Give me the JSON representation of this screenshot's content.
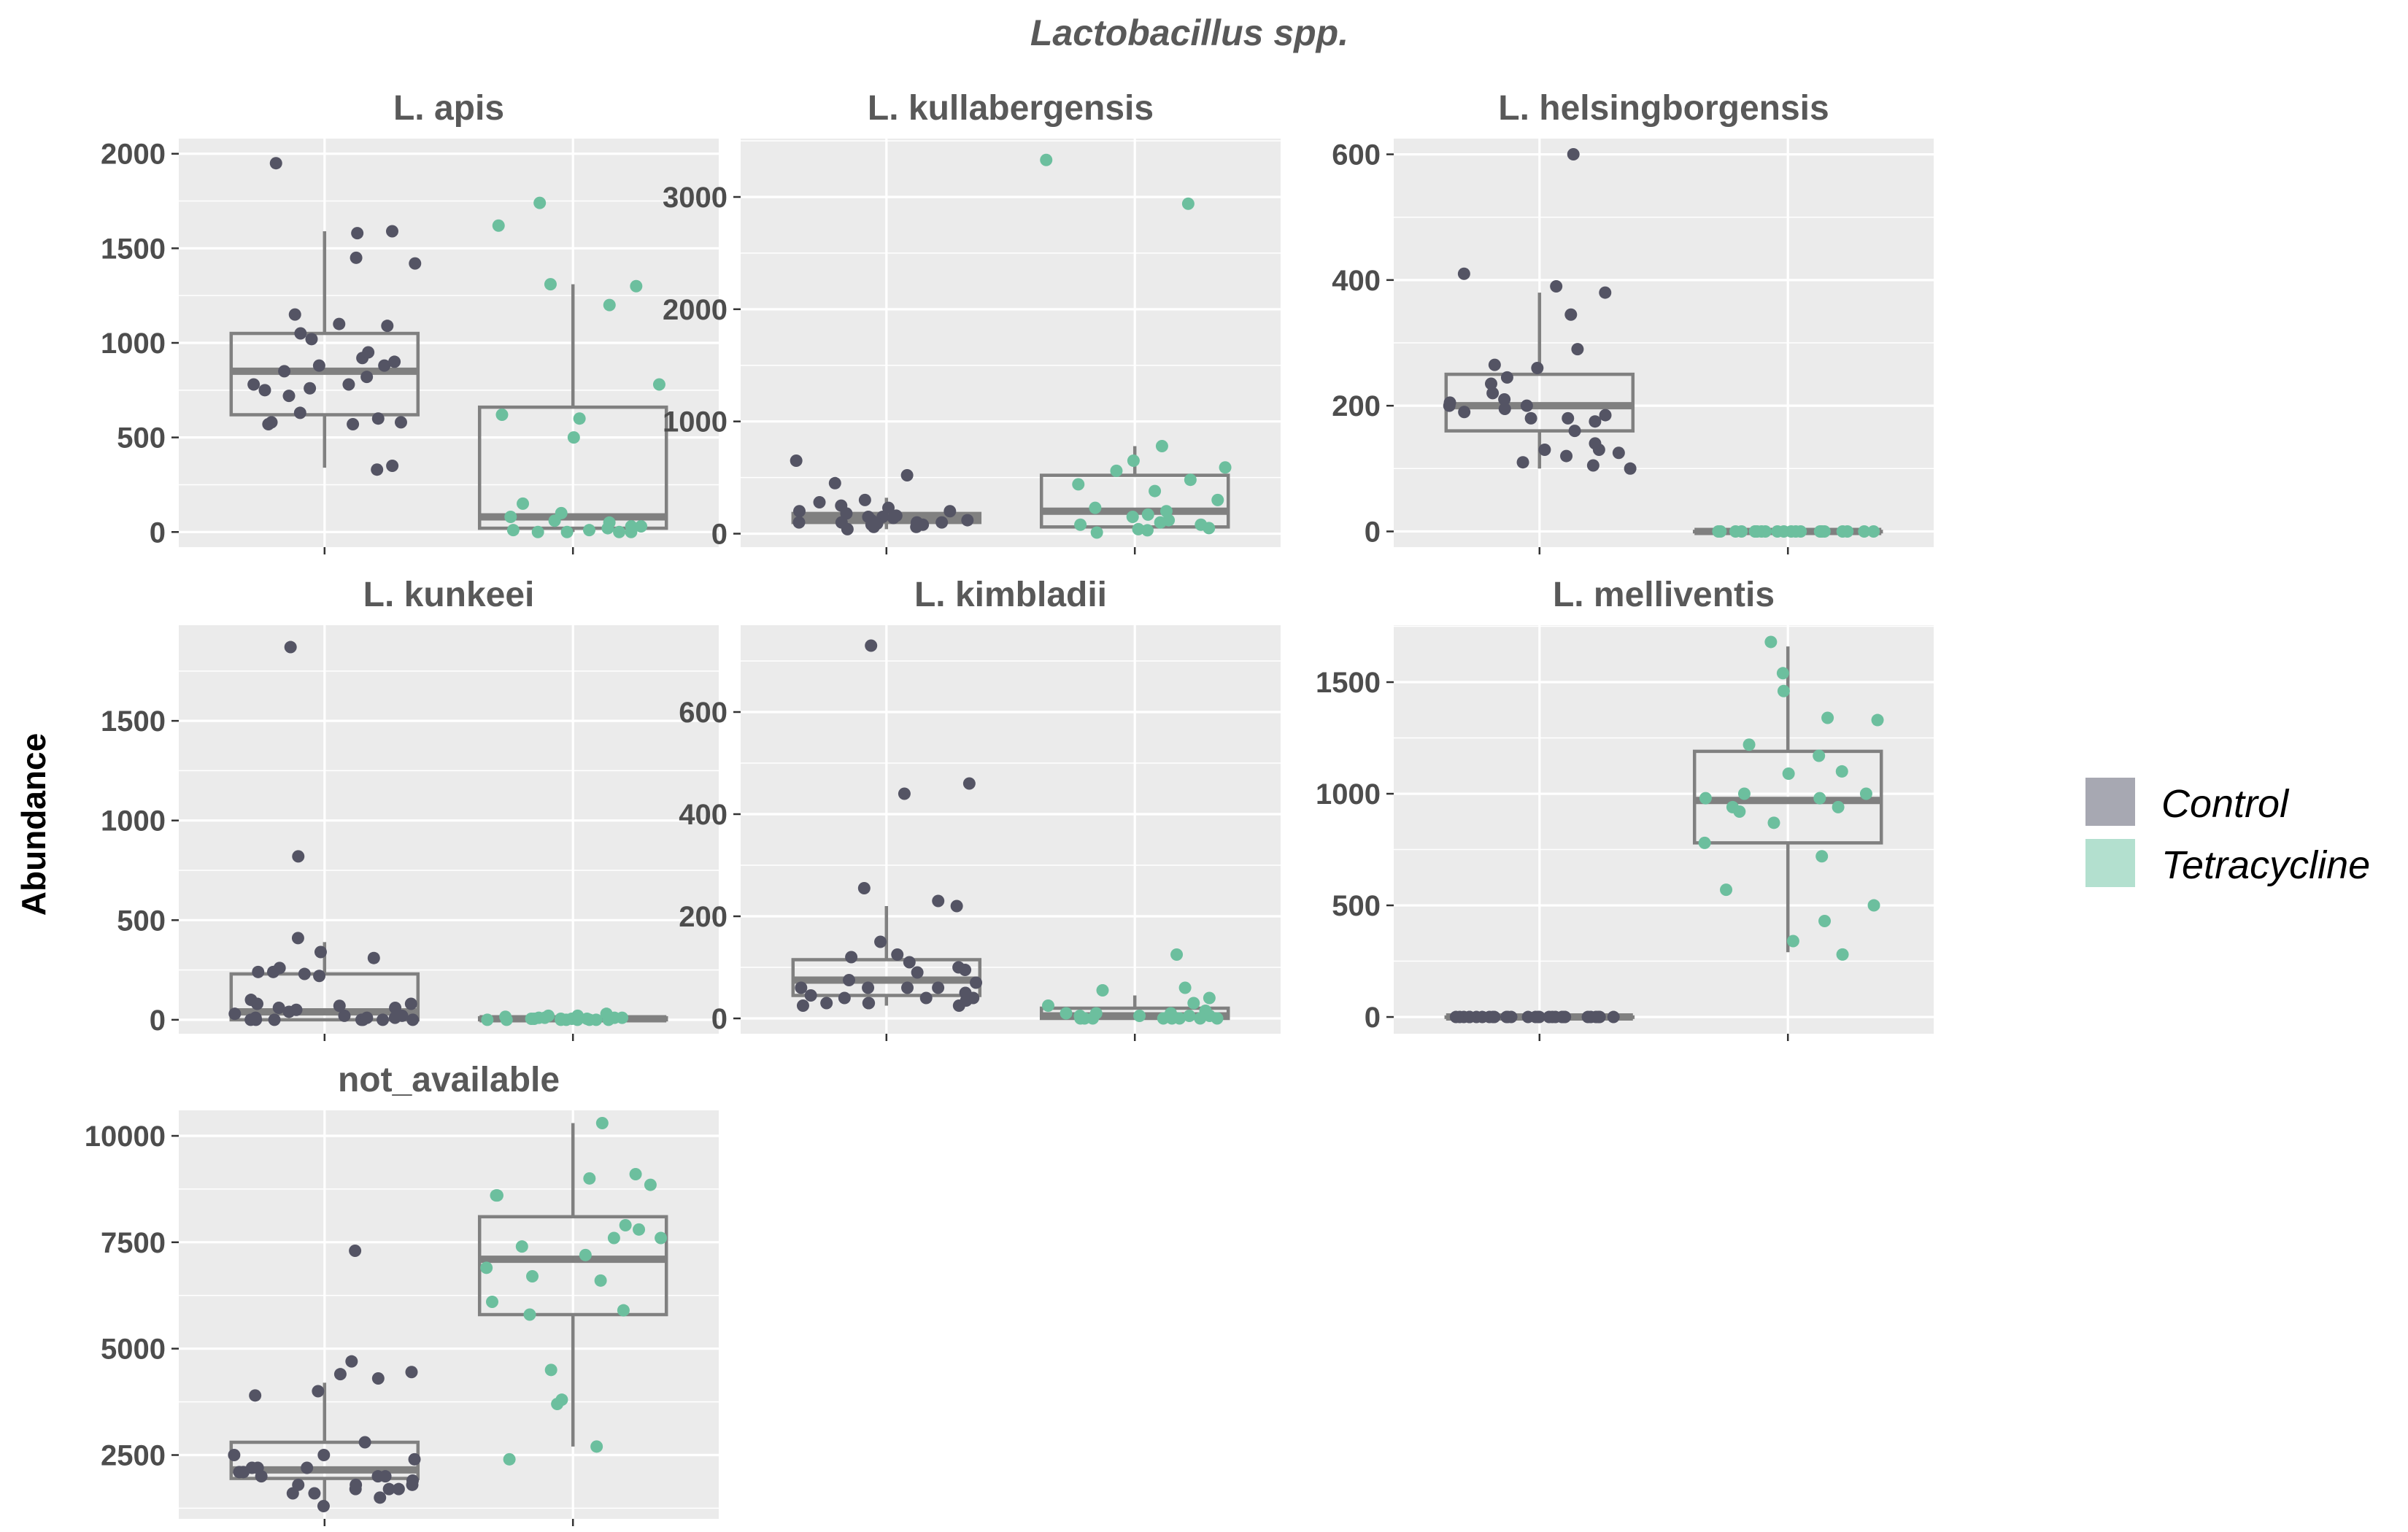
{
  "chart_data": {
    "type": "boxplot",
    "title": "Lactobacillus spp.",
    "ylabel": "Abundance",
    "xlabel": "",
    "grid": true,
    "legend_placement": "right",
    "colors": {
      "Control": "#545464",
      "Tetracycline": "#6cbf9e",
      "box": "#808080",
      "panel_bg": "#ebebeb",
      "grid": "#ffffff"
    },
    "legend": [
      {
        "name": "Control",
        "swatch": "#a7a8b2"
      },
      {
        "name": "Tetracycline",
        "swatch": "#b3e0cf"
      }
    ],
    "panels": [
      {
        "title": "L. apis",
        "ylim": [
          -80,
          2080
        ],
        "yticks": [
          0,
          500,
          1000,
          1500,
          2000
        ],
        "groups": [
          {
            "name": "Control",
            "box": {
              "min": 340,
              "q1": 620,
              "median": 850,
              "q3": 1050,
              "max": 1590
            },
            "points": [
              570,
              720,
              780,
              1420,
              1580,
              1450,
              750,
              900,
              920,
              880,
              950,
              1150,
              600,
              570,
              1100,
              1950,
              580,
              330,
              350,
              1090,
              780,
              880,
              820,
              630,
              850,
              1050,
              580,
              1590,
              760,
              1020
            ]
          },
          {
            "name": "Tetracycline",
            "box": {
              "min": 0,
              "q1": 20,
              "median": 80,
              "q3": 660,
              "max": 1310
            },
            "points": [
              30,
              10,
              80,
              1740,
              1310,
              500,
              780,
              0,
              0,
              150,
              100,
              30,
              0,
              0,
              600,
              1300,
              1200,
              620,
              10,
              1620,
              20,
              60,
              50
            ]
          }
        ]
      },
      {
        "title": "L. kullabergensis",
        "ylim": [
          -120,
          3520
        ],
        "yticks": [
          0,
          1000,
          2000,
          3000
        ],
        "groups": [
          {
            "name": "Control",
            "box": {
              "min": 40,
              "q1": 100,
              "median": 140,
              "q3": 180,
              "max": 320
            },
            "points": [
              100,
              300,
              150,
              80,
              120,
              60,
              200,
              250,
              280,
              100,
              650,
              40,
              180,
              120,
              450,
              100,
              150,
              140,
              200,
              520,
              80,
              100,
              160,
              90,
              230,
              60
            ]
          },
          {
            "name": "Tetracycline",
            "box": {
              "min": 10,
              "q1": 60,
              "median": 200,
              "q3": 520,
              "max": 780
            },
            "points": [
              10,
              150,
              300,
              80,
              40,
              50,
              380,
              3330,
              100,
              780,
              560,
              480,
              120,
              230,
              2940,
              590,
              650,
              440,
              30,
              200,
              80,
              170
            ]
          }
        ]
      },
      {
        "title": "L. helsingborgensis",
        "ylim": [
          -25,
          625
        ],
        "yticks": [
          0,
          200,
          400,
          600
        ],
        "groups": [
          {
            "name": "Control",
            "box": {
              "min": 100,
              "q1": 160,
              "median": 200,
              "q3": 250,
              "max": 380
            },
            "points": [
              160,
              410,
              125,
              190,
              220,
              180,
              175,
              195,
              185,
              235,
              140,
              110,
              200,
              205,
              245,
              290,
              130,
              105,
              100,
              390,
              380,
              210,
              200,
              265,
              130,
              120,
              600,
              345,
              260,
              180
            ]
          },
          {
            "name": "Tetracycline",
            "box": {
              "min": 0,
              "q1": 0,
              "median": 0,
              "q3": 0,
              "max": 0
            },
            "points": [
              0,
              0,
              0,
              0,
              0,
              0,
              0,
              0,
              0,
              0,
              0,
              0,
              0,
              0,
              0,
              0,
              0,
              0,
              0,
              0,
              0,
              0
            ]
          }
        ]
      },
      {
        "title": "L. kunkeei",
        "ylim": [
          -70,
          1980
        ],
        "yticks": [
          0,
          500,
          1000,
          1500
        ],
        "groups": [
          {
            "name": "Control",
            "box": {
              "min": 0,
              "q1": 0,
              "median": 40,
              "q3": 230,
              "max": 390
            },
            "points": [
              340,
              240,
              60,
              50,
              30,
              20,
              230,
              100,
              80,
              10,
              0,
              310,
              0,
              0,
              410,
              240,
              220,
              20,
              1870,
              0,
              10,
              820,
              0,
              0,
              60,
              70,
              80,
              260,
              10,
              40,
              0
            ]
          },
          {
            "name": "Tetracycline",
            "box": {
              "min": 0,
              "q1": 0,
              "median": 5,
              "q3": 10,
              "max": 30
            },
            "points": [
              5,
              0,
              10,
              20,
              0,
              30,
              5,
              0,
              10,
              0,
              15,
              5,
              0,
              20,
              10,
              0,
              5,
              10,
              0,
              5,
              0,
              10
            ]
          }
        ]
      },
      {
        "title": "L. kimbladii",
        "ylim": [
          -30,
          770
        ],
        "yticks": [
          0,
          200,
          400,
          600
        ],
        "groups": [
          {
            "name": "Control",
            "box": {
              "min": 25,
              "q1": 45,
              "median": 75,
              "q3": 115,
              "max": 220
            },
            "points": [
              50,
              95,
              60,
              30,
              220,
              40,
              25,
              30,
              60,
              35,
              40,
              60,
              730,
              255,
              30,
              25,
              75,
              460,
              40,
              70,
              230,
              150,
              90,
              100,
              120,
              60,
              440,
              110,
              125,
              45
            ]
          },
          {
            "name": "Tetracycline",
            "box": {
              "min": 0,
              "q1": 0,
              "median": 5,
              "q3": 20,
              "max": 45
            },
            "points": [
              5,
              0,
              25,
              0,
              10,
              30,
              125,
              0,
              5,
              15,
              0,
              10,
              0,
              40,
              5,
              0,
              55,
              0,
              60,
              10,
              0,
              5
            ]
          }
        ]
      },
      {
        "title": "L. melliventis",
        "ylim": [
          -75,
          1755
        ],
        "yticks": [
          0,
          500,
          1000,
          1500
        ],
        "groups": [
          {
            "name": "Control",
            "box": {
              "min": 0,
              "q1": 0,
              "median": 0,
              "q3": 0,
              "max": 0
            },
            "points": [
              0,
              0,
              0,
              0,
              0,
              0,
              0,
              0,
              0,
              0,
              0,
              0,
              0,
              0,
              0,
              0,
              0,
              0,
              0,
              0,
              0,
              0,
              0,
              0,
              0,
              0,
              0,
              0,
              0,
              0
            ]
          },
          {
            "name": "Tetracycline",
            "box": {
              "min": 290,
              "q1": 780,
              "median": 970,
              "q3": 1190,
              "max": 1660
            },
            "points": [
              940,
              870,
              780,
              1330,
              1100,
              280,
              920,
              940,
              1170,
              1000,
              1680,
              1540,
              500,
              980,
              1460,
              720,
              340,
              1090,
              430,
              1340,
              1220,
              1000,
              980,
              570
            ]
          }
        ]
      },
      {
        "title": "not_available",
        "ylim": [
          1000,
          10600
        ],
        "yticks": [
          2500,
          5000,
          7500,
          10000
        ],
        "groups": [
          {
            "name": "Control",
            "box": {
              "min": 1300,
              "q1": 1950,
              "median": 2150,
              "q3": 2800,
              "max": 4200
            },
            "points": [
              1700,
              1300,
              1600,
              2500,
              2200,
              1800,
              1500,
              4400,
              4450,
              2000,
              2800,
              2000,
              1900,
              4700,
              1700,
              2200,
              4300,
              1800,
              7300,
              2500,
              1700,
              4000,
              2100,
              1800,
              3900,
              2000,
              2400,
              2200,
              1600,
              2100
            ]
          },
          {
            "name": "Tetracycline",
            "box": {
              "min": 2700,
              "q1": 5800,
              "median": 7100,
              "q3": 8100,
              "max": 10300
            },
            "points": [
              8850,
              3800,
              2700,
              7600,
              7900,
              5900,
              4500,
              7400,
              7600,
              6100,
              6900,
              9100,
              3700,
              7800,
              6600,
              5800,
              2400,
              8600,
              9000,
              7200,
              10300,
              8600,
              6700
            ]
          }
        ]
      }
    ]
  }
}
